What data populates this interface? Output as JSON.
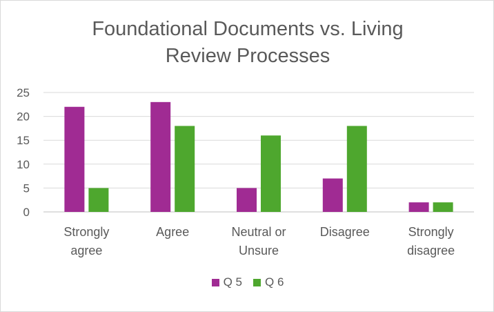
{
  "chart_data": {
    "type": "bar",
    "title_lines": [
      "Foundational Documents vs. Living",
      "Review Processes"
    ],
    "categories": [
      [
        "Strongly",
        "agree"
      ],
      [
        "Agree"
      ],
      [
        "Neutral or",
        "Unsure"
      ],
      [
        "Disagree"
      ],
      [
        "Strongly",
        "disagree"
      ]
    ],
    "series": [
      {
        "name": "Q 5",
        "color": "#a02b93",
        "values": [
          22,
          23,
          5,
          7,
          2
        ]
      },
      {
        "name": "Q 6",
        "color": "#4ea72e",
        "values": [
          5,
          18,
          16,
          18,
          2
        ]
      }
    ],
    "ylim": [
      0,
      25
    ],
    "yticks": [
      0,
      5,
      10,
      15,
      20,
      25
    ],
    "grid": true,
    "legend_position": "bottom"
  }
}
